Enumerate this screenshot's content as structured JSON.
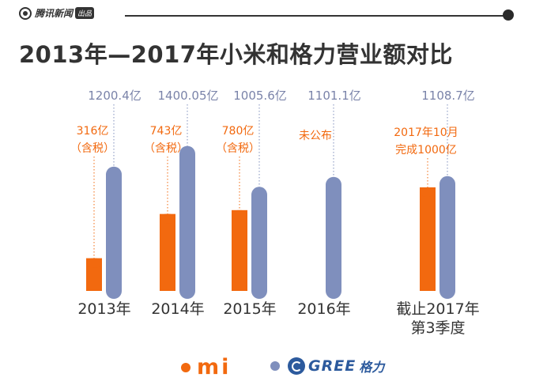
{
  "header": {
    "brand": "腾讯新闻",
    "badge": "出品"
  },
  "chart_data": {
    "type": "bar",
    "title": "2013年—2017年小米和格力营业额对比",
    "unit": "亿",
    "colors": {
      "xiaomi": "#f2690f",
      "gree": "#7f8fbd",
      "label_gree": "#7a83a9",
      "text": "#333333"
    },
    "categories": [
      {
        "lines": [
          "2013年"
        ]
      },
      {
        "lines": [
          "2014年"
        ]
      },
      {
        "lines": [
          "2015年"
        ]
      },
      {
        "lines": [
          "2016年"
        ]
      },
      {
        "lines": [
          "截止2017年",
          "第3季度"
        ]
      }
    ],
    "series": [
      {
        "name": "小米",
        "values": [
          316,
          743,
          780,
          null,
          1000
        ],
        "labels": [
          [
            "316亿",
            "（含税）"
          ],
          [
            "743亿",
            "（含税）"
          ],
          [
            "780亿",
            "（含税）"
          ],
          [
            "未公布"
          ],
          [
            "2017年10月",
            "完成1000亿"
          ]
        ]
      },
      {
        "name": "格力",
        "values": [
          1200.4,
          1400.05,
          1005.6,
          1101.1,
          1108.7
        ],
        "labels": [
          "1200.4亿",
          "1400.05亿",
          "1005.6亿",
          "1101.1亿",
          "1108.7亿"
        ]
      }
    ],
    "legend": {
      "position": "bottom",
      "xiaomi": "mi",
      "gree": "GREE",
      "gree_cn": "格力"
    }
  }
}
